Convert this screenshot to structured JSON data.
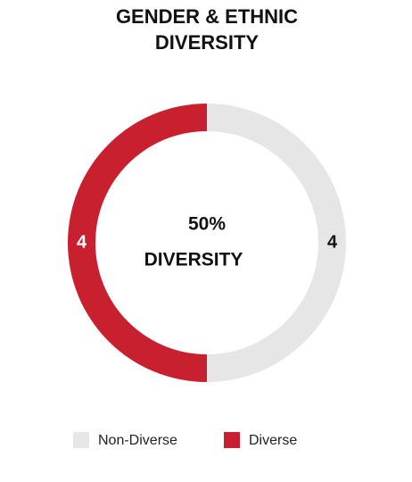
{
  "chart_data": {
    "type": "donut",
    "title": "GENDER & ETHNIC DIVERSITY",
    "categories": [
      "Non-Diverse",
      "Diverse"
    ],
    "values": [
      4,
      4
    ],
    "colors": [
      "#e6e6e6",
      "#c8202f"
    ],
    "annotations": [
      "50%",
      "DIVERSITY"
    ],
    "legend": "bottom"
  }
}
